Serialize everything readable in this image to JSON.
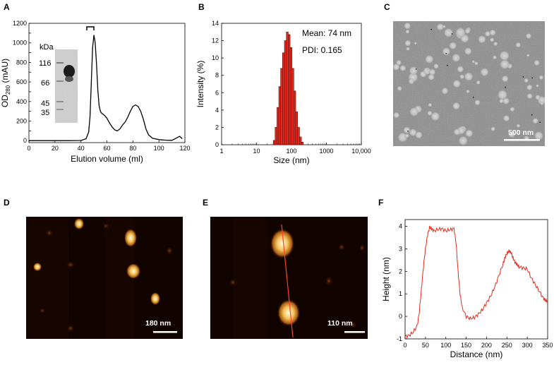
{
  "panels": {
    "A": {
      "letter": "A"
    },
    "B": {
      "letter": "B"
    },
    "C": {
      "letter": "C",
      "scalebar": "500 nm"
    },
    "D": {
      "letter": "D",
      "scalebar": "180 nm"
    },
    "E": {
      "letter": "E",
      "scalebar": "110 nm"
    },
    "F": {
      "letter": "F"
    }
  },
  "gel_inset": {
    "unit_label": "kDa",
    "markers": [
      "116",
      "66",
      "45",
      "35"
    ]
  },
  "dls_annotations": {
    "mean": "Mean: 74 nm",
    "pdi": "PDI: 0.165"
  },
  "colors": {
    "line_black": "#000000",
    "bar_red": "#e8291c",
    "profile_red": "#e8291c",
    "afm_dark": "#110300",
    "tem_gray": "#8a8a8a"
  },
  "chart_data": [
    {
      "id": "A",
      "type": "line",
      "xlabel": "Elution volume (ml)",
      "ylabel": "OD280 (mAU)",
      "ylabel_main": "OD",
      "ylabel_sub": "280",
      "ylabel_unit": " (mAU)",
      "xlim": [
        0,
        120
      ],
      "ylim": [
        -20,
        1200
      ],
      "xticks": [
        0,
        20,
        40,
        60,
        80,
        100,
        120
      ],
      "yticks": [
        0,
        100,
        200,
        300,
        400,
        500,
        600,
        700,
        800,
        900,
        1000,
        1100,
        1200
      ],
      "yticklabels": [
        "0",
        "",
        "200",
        "",
        "400",
        "",
        "600",
        "",
        "800",
        "",
        "1000",
        "",
        "1200"
      ],
      "series": [
        {
          "x": [
            0,
            10,
            20,
            30,
            40,
            44,
            46,
            47,
            48,
            49,
            50,
            51,
            52,
            53,
            54,
            55,
            56,
            58,
            60,
            62,
            64,
            66,
            68,
            70,
            72,
            74,
            76,
            78,
            80,
            82,
            84,
            86,
            88,
            90,
            92,
            95,
            100,
            105,
            110,
            114,
            116,
            118
          ],
          "y": [
            0,
            0,
            0,
            0,
            2,
            20,
            90,
            250,
            600,
            950,
            1080,
            1000,
            780,
            520,
            360,
            300,
            280,
            260,
            230,
            180,
            140,
            110,
            100,
            120,
            160,
            190,
            240,
            300,
            350,
            365,
            350,
            300,
            220,
            120,
            60,
            25,
            10,
            5,
            3,
            30,
            45,
            20
          ]
        }
      ]
    },
    {
      "id": "B",
      "type": "bar",
      "xlabel": "Size (nm)",
      "ylabel": "Intensity (%)",
      "xscale": "log",
      "xlim": [
        1,
        10000
      ],
      "ylim": [
        0,
        14
      ],
      "xticks": [
        1,
        10,
        100,
        1000,
        10000
      ],
      "xticklabels": [
        "1",
        "10",
        "100",
        "1000",
        "10,000"
      ],
      "yticks": [
        0,
        2,
        4,
        6,
        8,
        10,
        12,
        14
      ],
      "bins": [
        {
          "size": 32,
          "value": 0.5
        },
        {
          "size": 36,
          "value": 2.0
        },
        {
          "size": 41,
          "value": 4.3
        },
        {
          "size": 46,
          "value": 6.7
        },
        {
          "size": 52,
          "value": 8.8
        },
        {
          "size": 59,
          "value": 10.6
        },
        {
          "size": 67,
          "value": 12.0
        },
        {
          "size": 76,
          "value": 13.0
        },
        {
          "size": 86,
          "value": 12.7
        },
        {
          "size": 97,
          "value": 11.2
        },
        {
          "size": 110,
          "value": 8.8
        },
        {
          "size": 124,
          "value": 6.2
        },
        {
          "size": 141,
          "value": 3.8
        },
        {
          "size": 160,
          "value": 2.0
        },
        {
          "size": 181,
          "value": 0.9
        },
        {
          "size": 205,
          "value": 0.3
        }
      ]
    },
    {
      "id": "F",
      "type": "line",
      "xlabel": "Distance (nm)",
      "ylabel": "Height (nm)",
      "xlim": [
        0,
        350
      ],
      "ylim": [
        -1,
        4.3
      ],
      "xticks": [
        0,
        50,
        100,
        150,
        200,
        250,
        300,
        350
      ],
      "yticks": [
        -1,
        0,
        1,
        2,
        3,
        4
      ],
      "series": [
        {
          "x": [
            0,
            10,
            20,
            30,
            35,
            40,
            45,
            50,
            55,
            60,
            65,
            70,
            80,
            90,
            100,
            110,
            120,
            125,
            130,
            135,
            140,
            150,
            160,
            170,
            180,
            190,
            200,
            210,
            220,
            230,
            240,
            245,
            250,
            255,
            260,
            265,
            270,
            275,
            280,
            290,
            300,
            310,
            320,
            330,
            340,
            345,
            350
          ],
          "y": [
            -0.9,
            -0.85,
            -0.7,
            -0.4,
            0.2,
            1.2,
            2.2,
            3.0,
            3.6,
            3.95,
            3.9,
            3.8,
            3.85,
            3.9,
            3.8,
            3.85,
            3.9,
            3.3,
            2.0,
            1.0,
            0.4,
            0.0,
            -0.1,
            -0.05,
            0.1,
            0.3,
            0.6,
            0.9,
            1.3,
            1.8,
            2.3,
            2.6,
            2.8,
            2.9,
            2.85,
            2.6,
            2.4,
            2.3,
            2.2,
            2.15,
            2.1,
            1.7,
            1.4,
            1.1,
            0.8,
            0.7,
            0.7
          ]
        }
      ]
    }
  ]
}
